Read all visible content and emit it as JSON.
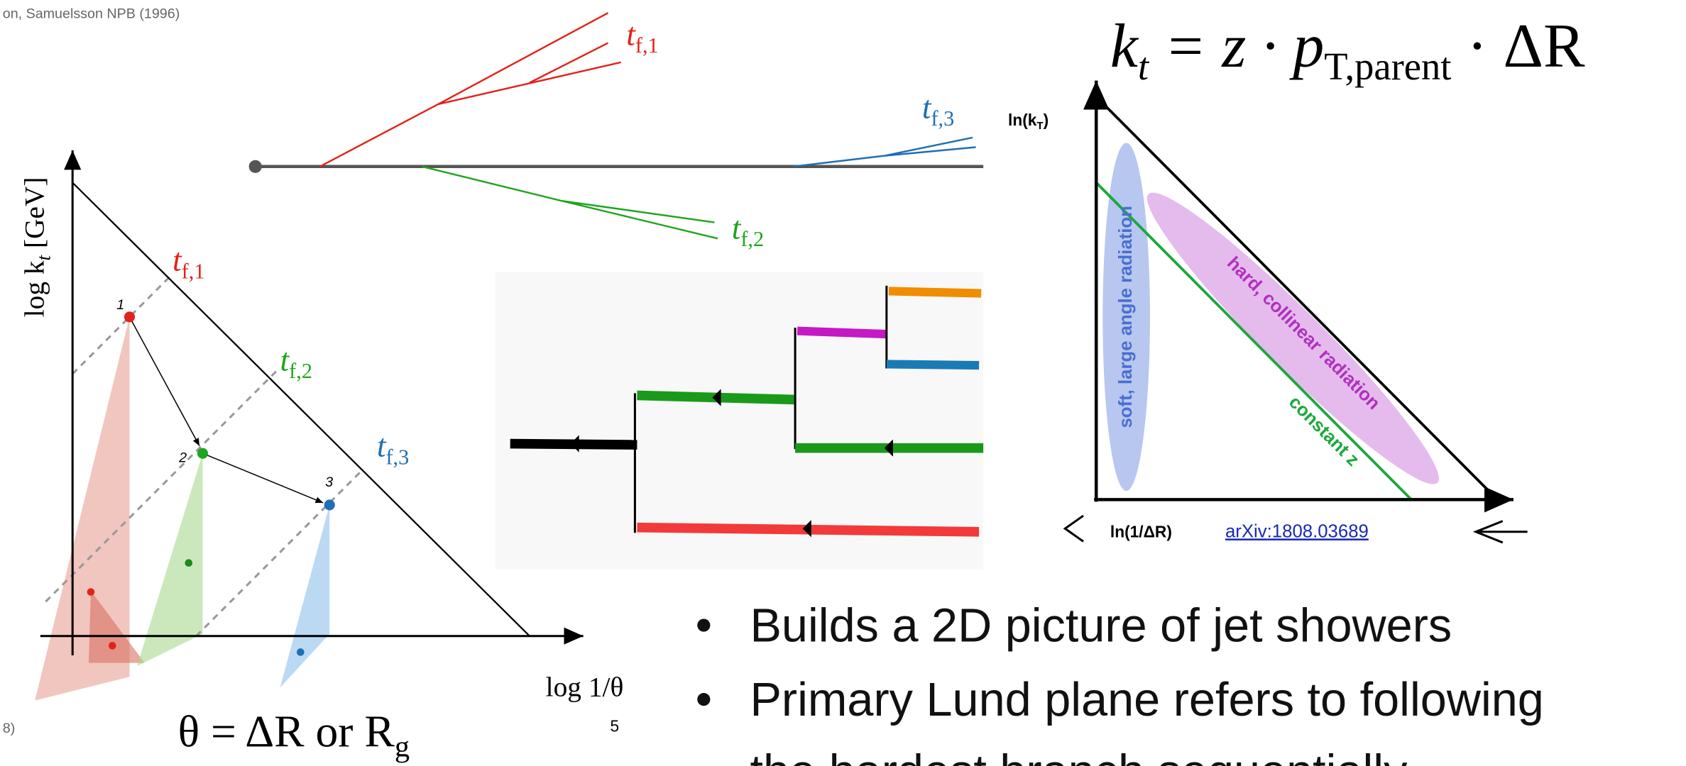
{
  "citation": "on, Samuelsson NPB (1996)",
  "citation_left": "8)",
  "formula": {
    "k": "k",
    "k_sub": "t",
    "mid": " = z · ",
    "p": "p",
    "p_sub": "T,parent",
    "end": " · ΔR"
  },
  "tree_labels": [
    {
      "base": "t",
      "sub": "f,1"
    },
    {
      "base": "t",
      "sub": "f,2"
    },
    {
      "base": "t",
      "sub": "f,3"
    }
  ],
  "lund": {
    "y_label": {
      "base": "log k",
      "sub": "t",
      "rest": " [GeV]"
    },
    "x_label": "log 1/θ",
    "emissions": [
      "1",
      "2",
      "3"
    ],
    "labels": [
      {
        "base": "t",
        "sub": "f,1"
      },
      {
        "base": "t",
        "sub": "f,2"
      },
      {
        "base": "t",
        "sub": "f,3"
      }
    ],
    "theta": {
      "main": "θ = ΔR or R",
      "sub": "g"
    }
  },
  "page_number": "5",
  "plane": {
    "y_label": {
      "base": "ln(k",
      "sub": "T",
      "rest": ")"
    },
    "x_label": "ln(1/ΔR)",
    "link": "arXiv:1808.03689",
    "regions": [
      "soft, large angle radiation",
      "hard, collinear radiation",
      "constant z"
    ]
  },
  "bullets": [
    "Builds a 2D picture of jet showers",
    "Primary Lund plane refers to following",
    "the hardest branch sequentially"
  ]
}
